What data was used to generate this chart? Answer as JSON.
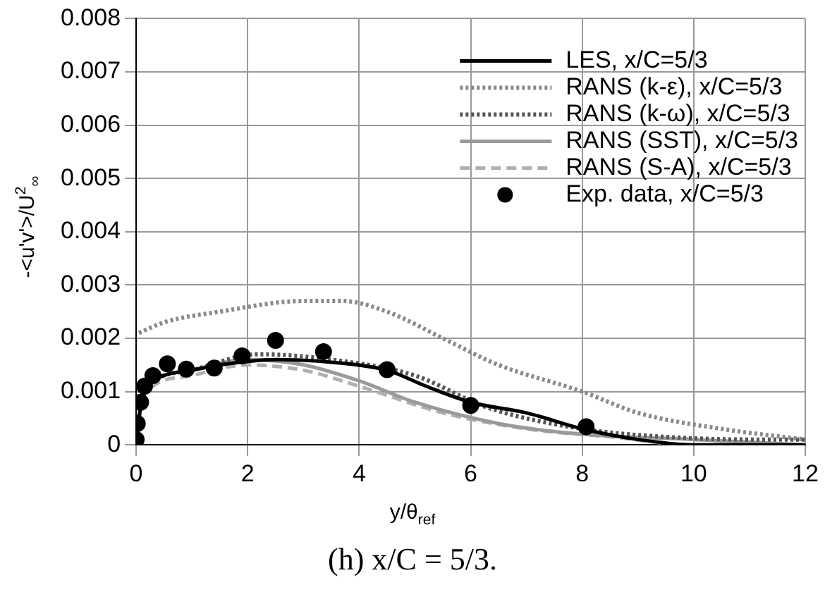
{
  "chart_data": {
    "type": "line",
    "title": "(h) x/C = 5/3.",
    "xlabel": "y/θ$_{ref}$",
    "ylabel": "-<u'v'>/U$^{2}$$_{∞}$",
    "xlim": [
      0,
      12
    ],
    "xticks": [
      0,
      2,
      4,
      6,
      8,
      10,
      12
    ],
    "ylim": [
      0,
      0.008
    ],
    "yticks": [
      0,
      0.001,
      0.002,
      0.003,
      0.004,
      0.005,
      0.006,
      0.007,
      0.008
    ],
    "grid": true,
    "legend": "top right",
    "marker": "none",
    "series": [
      {
        "name": "LES, x/C=5/3",
        "color": "#000000",
        "line_style": "solid",
        "x": [
          0,
          0.05,
          0.1,
          0.2,
          0.5,
          1,
          1.5,
          2.5,
          3.5,
          4.5,
          5.2,
          6,
          7,
          8,
          9,
          10,
          12
        ],
        "values": [
          0,
          0.0005,
          0.0008,
          0.0011,
          0.0013,
          0.0014,
          0.0015,
          0.0016,
          0.00155,
          0.0014,
          0.0011,
          0.0008,
          0.0006,
          0.0003,
          0.0001,
          0,
          0
        ]
      },
      {
        "name": "RANS (k-ε), x/C=5/3",
        "color": "#8a8a8a",
        "line_style": "dotted",
        "x": [
          0.05,
          0.5,
          1.5,
          3,
          3.7,
          4.5,
          5.5,
          6.5,
          8,
          9,
          10.5,
          12
        ],
        "values": [
          0.0021,
          0.0023,
          0.0025,
          0.0027,
          0.0027,
          0.0025,
          0.002,
          0.0015,
          0.001,
          0.0006,
          0.0003,
          0.0001
        ]
      },
      {
        "name": "RANS (k-ω), x/C=5/3",
        "color": "#555555",
        "line_style": "dotted",
        "x": [
          0,
          0.1,
          0.3,
          1,
          2.2,
          3.5,
          5,
          6.3,
          8,
          9.5,
          11,
          12
        ],
        "values": [
          0,
          0.0009,
          0.0012,
          0.0014,
          0.0017,
          0.0016,
          0.0013,
          0.0007,
          0.0003,
          0.00015,
          0.0001,
          0.0001
        ]
      },
      {
        "name": "RANS (SST), x/C=5/3",
        "color": "#9a9a9a",
        "line_style": "solid",
        "x": [
          0,
          0.1,
          0.3,
          1,
          2,
          3,
          4,
          5,
          6.5,
          8,
          10,
          12
        ],
        "values": [
          0,
          0.0009,
          0.0012,
          0.0014,
          0.0016,
          0.0015,
          0.0012,
          0.0008,
          0.0004,
          0.0002,
          0.0001,
          0
        ]
      },
      {
        "name": "RANS (S-A), x/C=5/3",
        "color": "#b0b0b0",
        "line_style": "dashed",
        "x": [
          0,
          0.1,
          0.3,
          1,
          2,
          3,
          4,
          5.5,
          7,
          8.5,
          10,
          12
        ],
        "values": [
          0,
          0.0008,
          0.0011,
          0.0013,
          0.0015,
          0.0014,
          0.0011,
          0.0006,
          0.0003,
          0.00015,
          0,
          0
        ]
      },
      {
        "name": "Exp. data, x/C=5/3",
        "type": "scatter",
        "marker": "circle",
        "color": "#000000",
        "x": [
          0,
          0.02,
          0.08,
          0.15,
          0.3,
          0.56,
          0.9,
          1.4,
          1.9,
          2.5,
          3.36,
          4.5,
          6,
          8.07
        ],
        "values": [
          0.0001,
          0.0004,
          0.0008,
          0.0011,
          0.0013,
          0.00152,
          0.00142,
          0.00144,
          0.00167,
          0.00196,
          0.00175,
          0.00141,
          0.00074,
          0.00034
        ]
      }
    ]
  }
}
